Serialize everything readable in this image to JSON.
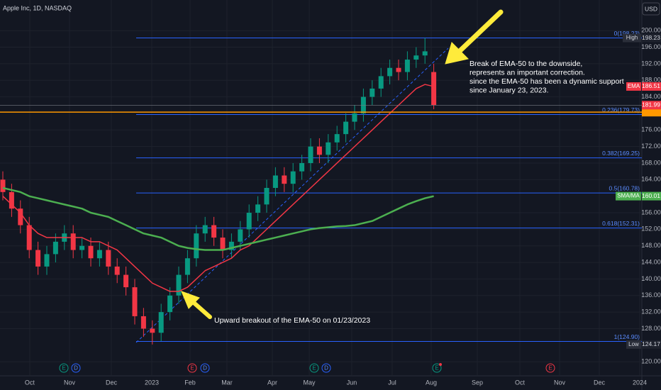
{
  "chart_data": {
    "type": "candlestick",
    "title": "Apple Inc, 1D, NASDAQ",
    "currency": "USD",
    "categories": [
      null,
      null,
      null,
      null,
      null,
      null,
      null,
      null,
      null,
      null,
      null,
      null,
      null,
      null,
      null,
      null,
      null,
      null,
      null,
      null,
      null,
      null,
      null,
      null,
      null,
      null,
      null,
      null,
      null,
      null,
      null,
      null,
      null,
      null,
      null,
      null,
      null,
      null,
      null,
      null,
      null,
      null,
      null,
      null,
      null,
      null,
      null,
      null,
      null,
      null
    ],
    "open": [
      164,
      161,
      157,
      153,
      147,
      143,
      146,
      149,
      151,
      147,
      148,
      145,
      147,
      143,
      141,
      138,
      131,
      128,
      127,
      132,
      136,
      141,
      145,
      151,
      153,
      150,
      147,
      149,
      152,
      156,
      158,
      162,
      165,
      163,
      166,
      168,
      172,
      170,
      173,
      175,
      178,
      180,
      184,
      186,
      189,
      191,
      190,
      193,
      194,
      190
    ],
    "high": [
      166,
      163,
      159,
      155,
      149,
      148,
      151,
      153,
      153,
      150,
      150,
      149,
      149,
      145,
      143,
      140,
      133,
      130,
      134,
      138,
      143,
      147,
      153,
      155,
      155,
      152,
      151,
      154,
      158,
      160,
      164,
      167,
      167,
      168,
      170,
      174,
      174,
      175,
      177,
      180,
      182,
      186,
      188,
      191,
      193,
      193,
      195,
      196,
      198.23,
      192
    ],
    "low": [
      159,
      155,
      151,
      145,
      141,
      141,
      144,
      147,
      145,
      145,
      143,
      143,
      141,
      139,
      136,
      129,
      126,
      124.17,
      125,
      130,
      134,
      139,
      143,
      149,
      148,
      145,
      145,
      147,
      150,
      154,
      156,
      160,
      161,
      161,
      164,
      166,
      168,
      168,
      171,
      173,
      176,
      178,
      182,
      184,
      187,
      188,
      188,
      191,
      192,
      181
    ],
    "close": [
      161,
      157,
      153,
      147,
      143,
      146,
      149,
      151,
      147,
      148,
      145,
      147,
      143,
      141,
      138,
      131,
      128,
      127,
      132,
      136,
      141,
      145,
      151,
      153,
      150,
      147,
      149,
      152,
      156,
      158,
      162,
      165,
      163,
      166,
      168,
      172,
      170,
      173,
      175,
      178,
      180,
      184,
      186,
      189,
      191,
      190,
      193,
      194,
      195,
      181.99
    ],
    "up_color": "#089981",
    "down_color": "#f23645",
    "series": [
      {
        "name": "EMA",
        "color": "#f23645",
        "values": [
          160,
          158,
          156,
          153,
          151,
          150,
          150,
          150,
          150,
          150,
          149,
          149,
          148,
          147,
          145,
          143,
          141,
          139,
          138,
          137,
          137,
          138,
          140,
          142,
          143,
          144,
          145,
          147,
          148,
          150,
          152,
          154,
          156,
          158,
          160,
          162,
          164,
          166,
          168,
          170,
          172,
          174,
          176,
          178,
          180,
          182,
          184,
          186,
          187,
          186.51
        ]
      },
      {
        "name": "SMA/MA",
        "color": "#4caf50",
        "values": [
          162,
          161.5,
          161,
          160,
          159.5,
          159,
          158.5,
          158,
          157.5,
          157,
          156,
          155.5,
          155,
          154,
          153,
          152,
          151,
          150.5,
          150,
          149,
          148,
          147.5,
          147.2,
          147,
          147,
          147,
          147.5,
          148,
          148.5,
          149,
          149.5,
          150,
          150.5,
          151,
          151.5,
          152,
          152.3,
          152.5,
          152.7,
          152.8,
          153,
          153.5,
          154,
          155,
          156,
          157,
          158,
          158.8,
          159.5,
          160.01
        ]
      }
    ],
    "high_label": "High",
    "low_label": "Low",
    "price_line": 180.3,
    "price_line_color": "#ff9800",
    "fib_color": "#2962ff",
    "fib_levels": [
      {
        "value": 198.23,
        "label": "0(198.23)"
      },
      {
        "value": 179.73,
        "label": "0.236(179.73)"
      },
      {
        "value": 169.25,
        "label": "0.382(169.25)"
      },
      {
        "value": 160.78,
        "label": "0.5(160.78)"
      },
      {
        "value": 152.31,
        "label": "0.618(152.31)"
      },
      {
        "value": 124.9,
        "label": "1(124.90)"
      }
    ],
    "ylim": [
      116.6,
      207.4
    ],
    "yticks": [
      {
        "value": 200,
        "label": "200.00"
      },
      {
        "value": 196,
        "label": "196.00"
      },
      {
        "value": 192,
        "label": "192.00"
      },
      {
        "value": 188,
        "label": "188.00"
      },
      {
        "value": 184,
        "label": "184.00"
      },
      {
        "value": 176,
        "label": "176.00"
      },
      {
        "value": 172,
        "label": "172.00"
      },
      {
        "value": 168,
        "label": "168.00"
      },
      {
        "value": 164,
        "label": "164.00"
      },
      {
        "value": 156,
        "label": "156.00"
      },
      {
        "value": 152,
        "label": "152.00"
      },
      {
        "value": 148,
        "label": "148.00"
      },
      {
        "value": 144,
        "label": "144.00"
      },
      {
        "value": 140,
        "label": "140.00"
      },
      {
        "value": 136,
        "label": "136.00"
      },
      {
        "value": 132,
        "label": "132.00"
      },
      {
        "value": 128,
        "label": "128.00"
      },
      {
        "value": 120,
        "label": "120.00"
      }
    ],
    "xticks": [
      {
        "value": 3.06,
        "label": "Oct"
      },
      {
        "value": 7.58,
        "label": "Nov"
      },
      {
        "value": 12.34,
        "label": "Dec"
      },
      {
        "value": 16.94,
        "label": "2023"
      },
      {
        "value": 21.29,
        "label": "Feb"
      },
      {
        "value": 25.48,
        "label": "Mar"
      },
      {
        "value": 30.65,
        "label": "Apr"
      },
      {
        "value": 34.84,
        "label": "May"
      },
      {
        "value": 39.68,
        "label": "Jun"
      },
      {
        "value": 44.27,
        "label": "Jul"
      },
      {
        "value": 48.71,
        "label": "Aug"
      },
      {
        "value": 53.95,
        "label": "Sep"
      },
      {
        "value": 58.79,
        "label": "Oct"
      },
      {
        "value": 63.31,
        "label": "Nov"
      },
      {
        "value": 67.82,
        "label": "Dec"
      },
      {
        "value": 72.42,
        "label": "2024"
      }
    ],
    "annotations": [
      {
        "lines": [
          "Break of EMA-50 to the downside,",
          "represents an important correction.",
          "since the EMA-50 has been a dynamic support",
          "since January 23, 2023."
        ]
      },
      {
        "lines": [
          "Upward breakout of the EMA-50 on 01/23/2023"
        ]
      }
    ],
    "events": [
      "E",
      "D",
      "E",
      "D",
      "E",
      "D",
      "E",
      "E"
    ]
  }
}
